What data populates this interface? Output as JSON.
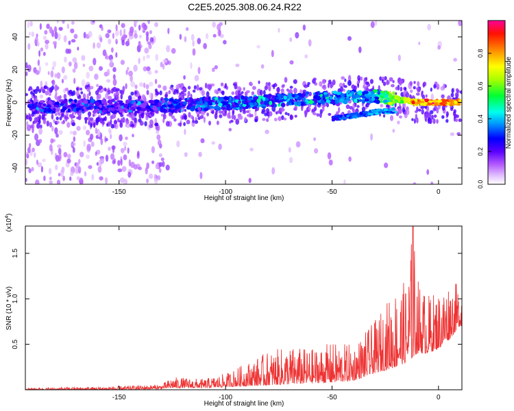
{
  "title": "C2E5.2025.308.06.24.R22",
  "chart_data": [
    {
      "type": "heatmap",
      "title": "C2E5.2025.308.06.24.R22",
      "xlabel": "Height of straight line (km)",
      "ylabel": "Frequency (Hz)",
      "xlim": [
        -194,
        11
      ],
      "ylim": [
        -50,
        50
      ],
      "xticks": [
        -150,
        -100,
        -50,
        0
      ],
      "yticks": [
        -40,
        -20,
        0,
        20,
        40
      ],
      "colorbar": {
        "label": "Normalized spectral amplitude",
        "range": [
          0.0,
          1.0
        ],
        "ticks": [
          0.0,
          0.2,
          0.4,
          0.6,
          0.8
        ],
        "tick_labels": [
          "0.0",
          "0.2",
          "0.4",
          "0.6",
          "0.8"
        ],
        "colors": [
          "#ffffff",
          "#cc66ff",
          "#7a00ff",
          "#0000ff",
          "#00aaff",
          "#00ffcc",
          "#00ff00",
          "#ffff00",
          "#ff8800",
          "#ff0000",
          "#ff0088"
        ]
      },
      "signal_track": {
        "x": [
          -190,
          -170,
          -150,
          -130,
          -110,
          -90,
          -70,
          -50,
          -30,
          -20,
          -10,
          0,
          10
        ],
        "freq": [
          -3,
          -2,
          -3,
          -2,
          -1,
          0,
          2,
          3,
          4,
          2,
          0,
          0,
          0
        ],
        "amplitude": [
          0.28,
          0.3,
          0.28,
          0.32,
          0.35,
          0.38,
          0.4,
          0.42,
          0.45,
          0.7,
          0.85,
          0.9,
          0.9
        ]
      },
      "secondary_track": {
        "x": [
          -50,
          -40,
          -30,
          -20
        ],
        "freq": [
          -10,
          -8,
          -6,
          -5
        ],
        "amplitude": [
          0.35,
          0.4,
          0.42,
          0.45
        ]
      }
    },
    {
      "type": "line",
      "xlabel": "Height of straight line (km)",
      "ylabel": "SNR (10 * v/v)",
      "multiplier_label": "(x10",
      "multiplier_exp": "4",
      "multiplier_close": ")",
      "xlim": [
        -194,
        11
      ],
      "ylim": [
        0.0,
        1.8
      ],
      "xticks": [
        -150,
        -100,
        -50,
        0
      ],
      "yticks": [
        0.5,
        1.0,
        1.5
      ],
      "ytick_labels": [
        "0.5",
        "1.0",
        "1.5"
      ],
      "series": [
        {
          "name": "SNR",
          "color": "#ee3333",
          "x": [
            -194,
            -170,
            -150,
            -130,
            -125,
            -110,
            -100,
            -90,
            -80,
            -70,
            -60,
            -50,
            -40,
            -30,
            -20,
            -15,
            -12,
            -10,
            -5,
            0,
            5,
            10
          ],
          "envelope_low": [
            0.0,
            0.0,
            0.0,
            0.01,
            0.02,
            0.02,
            0.03,
            0.04,
            0.05,
            0.06,
            0.07,
            0.08,
            0.1,
            0.18,
            0.25,
            0.3,
            0.35,
            0.4,
            0.4,
            0.45,
            0.55,
            0.7
          ],
          "envelope_high": [
            0.02,
            0.03,
            0.04,
            0.06,
            0.14,
            0.12,
            0.18,
            0.3,
            0.42,
            0.48,
            0.45,
            0.52,
            0.5,
            0.75,
            1.15,
            1.2,
            1.82,
            1.25,
            1.05,
            1.1,
            1.22,
            1.15
          ]
        }
      ]
    }
  ]
}
